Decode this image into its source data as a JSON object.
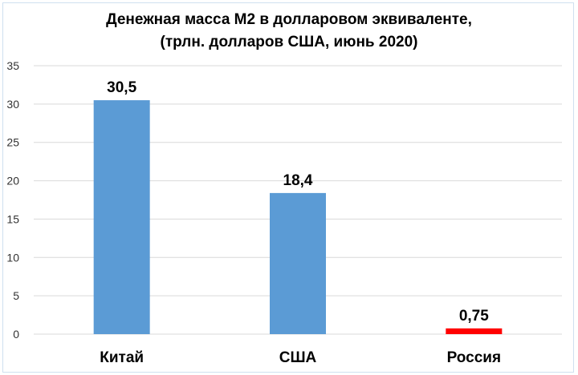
{
  "chart_data": {
    "type": "bar",
    "title_lines": [
      "Денежная масса М2 в долларовом эквиваленте,",
      "(трлн. долларов США, июнь 2020)"
    ],
    "categories": [
      "Китай",
      "США",
      "Россия"
    ],
    "values": [
      30.5,
      18.4,
      0.75
    ],
    "data_labels": [
      "30,5",
      "18,4",
      "0,75"
    ],
    "bar_colors": [
      "#5b9bd5",
      "#5b9bd5",
      "#ff0000"
    ],
    "y_ticks": [
      "0",
      "5",
      "10",
      "15",
      "20",
      "25",
      "30",
      "35"
    ],
    "ylim": [
      0,
      35
    ],
    "grid": "horizontal",
    "legend": "none"
  }
}
